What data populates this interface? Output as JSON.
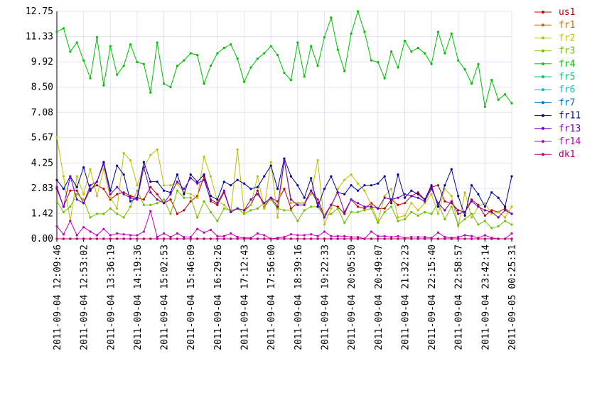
{
  "chart_data": {
    "type": "line",
    "categories": [
      "2011-09-04 12:09:46",
      null,
      null,
      null,
      "2011-09-04 12:53:02",
      null,
      null,
      null,
      "2011-09-04 13:36:19",
      null,
      null,
      null,
      "2011-09-04 14:19:36",
      null,
      null,
      null,
      "2011-09-04 15:02:53",
      null,
      null,
      null,
      "2011-09-04 15:46:09",
      null,
      null,
      null,
      "2011-09-04 16:29:26",
      null,
      null,
      null,
      "2011-09-04 17:12:43",
      null,
      null,
      null,
      "2011-09-04 17:56:00",
      null,
      null,
      null,
      "2011-09-04 18:39:16",
      null,
      null,
      null,
      "2011-09-04 19:22:33",
      null,
      null,
      null,
      "2011-09-04 20:05:50",
      null,
      null,
      null,
      "2011-09-04 20:49:07",
      null,
      null,
      null,
      "2011-09-04 21:32:23",
      null,
      null,
      null,
      "2011-09-04 22:15:40",
      null,
      null,
      null,
      "2011-09-04 22:58:57",
      null,
      null,
      null,
      "2011-09-04 23:42:14",
      null,
      null,
      null,
      "2011-09-05 00:25:31"
    ],
    "ylim": [
      0,
      12.75
    ],
    "yticks": [
      {
        "value": 0,
        "label": "0.00"
      },
      {
        "value": 1.42,
        "label": "1.42"
      },
      {
        "value": 2.83,
        "label": "2.83"
      },
      {
        "value": 4.25,
        "label": "4.25"
      },
      {
        "value": 5.67,
        "label": "5.67"
      },
      {
        "value": 7.08,
        "label": "7.08"
      },
      {
        "value": 8.5,
        "label": "8.50"
      },
      {
        "value": 9.92,
        "label": "9.92"
      },
      {
        "value": 11.33,
        "label": "11.33"
      },
      {
        "value": 12.75,
        "label": "12.75"
      }
    ],
    "grid": true,
    "legend": "right",
    "series": [
      {
        "name": "us1",
        "color": "#c00000",
        "values": [
          2.9,
          1.8,
          2.7,
          2.7,
          2.0,
          2.8,
          3.0,
          2.8,
          2.2,
          2.5,
          2.6,
          2.4,
          2.3,
          2.2,
          2.9,
          2.5,
          2.0,
          2.2,
          1.4,
          1.6,
          2.1,
          2.4,
          3.5,
          2.1,
          1.9,
          2.6,
          1.5,
          1.7,
          1.6,
          1.9,
          2.7,
          1.8,
          2.3,
          2.1,
          2.8,
          1.7,
          2.0,
          2.0,
          2.7,
          2.2,
          1.3,
          1.9,
          1.8,
          1.4,
          2.2,
          1.8,
          1.7,
          2.0,
          1.7,
          1.7,
          2.2,
          1.9,
          2.0,
          2.4,
          2.6,
          2.2,
          2.9,
          3.0,
          2.1,
          2.0,
          1.6,
          1.5,
          2.2,
          1.9,
          1.3,
          1.6,
          1.5,
          1.7,
          1.4
        ]
      },
      {
        "name": "fr1",
        "color": "#c07000",
        "values": [
          0,
          0,
          0,
          0,
          0,
          0,
          0,
          0,
          0,
          0,
          0,
          0,
          0,
          0,
          0,
          0,
          0,
          0,
          0,
          0,
          0,
          0,
          0,
          0,
          0,
          0,
          0,
          0,
          0,
          0,
          0,
          0,
          0,
          0,
          0,
          0,
          0,
          0,
          0,
          0,
          0,
          0,
          0,
          0,
          0,
          0,
          0,
          0,
          0,
          0,
          0,
          0,
          0,
          0,
          0,
          0,
          0,
          0,
          0,
          0,
          0,
          0,
          0,
          0,
          0,
          0,
          0,
          0,
          0
        ]
      },
      {
        "name": "fr2",
        "color": "#c0c000",
        "values": [
          5.7,
          3.5,
          1.0,
          3.5,
          2.5,
          3.9,
          2.4,
          3.9,
          2.3,
          1.7,
          4.8,
          4.4,
          3.0,
          4.0,
          4.7,
          5.0,
          3.0,
          3.0,
          3.1,
          2.6,
          2.5,
          2.3,
          4.6,
          3.5,
          2.1,
          1.9,
          1.5,
          5.0,
          1.5,
          1.9,
          3.5,
          1.7,
          4.3,
          1.2,
          4.4,
          2.0,
          2.0,
          2.0,
          2.5,
          4.4,
          0.8,
          1.7,
          2.8,
          3.3,
          3.6,
          3.1,
          2.7,
          1.9,
          1.0,
          2.4,
          2.8,
          1.2,
          1.3,
          2.0,
          1.6,
          2.0,
          2.5,
          1.4,
          2.8,
          2.4,
          0.7,
          2.6,
          1.2,
          1.8,
          2.0,
          1.4,
          1.5,
          1.2,
          1.8
        ]
      },
      {
        "name": "fr3",
        "color": "#70c000",
        "values": [
          2.1,
          1.5,
          1.8,
          2.5,
          2.2,
          1.2,
          1.4,
          1.4,
          1.7,
          1.4,
          1.2,
          1.8,
          2.7,
          1.9,
          1.9,
          2.0,
          2.2,
          1.4,
          2.7,
          2.3,
          2.3,
          1.2,
          2.1,
          1.5,
          1.0,
          1.7,
          1.6,
          1.7,
          1.4,
          1.6,
          1.7,
          2.0,
          2.2,
          1.7,
          1.6,
          1.6,
          1.0,
          1.6,
          1.8,
          1.8,
          1.3,
          1.4,
          1.7,
          0.9,
          1.5,
          1.5,
          1.6,
          1.7,
          0.9,
          1.5,
          1.8,
          1.0,
          1.1,
          1.5,
          1.3,
          1.5,
          1.4,
          2.0,
          1.1,
          1.8,
          0.8,
          1.1,
          1.4,
          0.8,
          1.0,
          0.6,
          0.7,
          1.0,
          0.8
        ]
      },
      {
        "name": "fr4",
        "color": "#00c000",
        "values": [
          11.6,
          11.8,
          10.5,
          11.0,
          10.0,
          9.0,
          11.3,
          8.6,
          10.8,
          9.2,
          9.7,
          10.9,
          9.9,
          9.8,
          8.2,
          11.0,
          8.7,
          8.5,
          9.7,
          10.0,
          10.4,
          10.3,
          8.7,
          9.7,
          10.4,
          10.7,
          10.9,
          10.1,
          8.8,
          9.6,
          10.1,
          10.4,
          10.8,
          10.3,
          9.3,
          8.9,
          11.0,
          9.1,
          10.8,
          9.7,
          11.3,
          12.4,
          10.6,
          9.4,
          11.5,
          12.75,
          11.6,
          10.0,
          9.9,
          9.0,
          10.5,
          9.6,
          11.1,
          10.5,
          10.7,
          10.4,
          9.8,
          11.6,
          10.4,
          11.5,
          10.0,
          9.5,
          8.7,
          9.8,
          7.4,
          8.9,
          7.8,
          8.1,
          7.6
        ]
      },
      {
        "name": "fr5",
        "color": "#00c070",
        "values": [
          0,
          0,
          0,
          0,
          0,
          0,
          0,
          0,
          0,
          0,
          0,
          0,
          0,
          0,
          0,
          0,
          0,
          0,
          0,
          0,
          0,
          0,
          0,
          0,
          0,
          0,
          0,
          0,
          0,
          0,
          0,
          0,
          0,
          0,
          0,
          0,
          0,
          0,
          0,
          0,
          0,
          0,
          0,
          0,
          0,
          0,
          0,
          0,
          0,
          0,
          0,
          0,
          0,
          0,
          0,
          0,
          0,
          0,
          0,
          0,
          0,
          0,
          0,
          0,
          0,
          0,
          0,
          0,
          0
        ]
      },
      {
        "name": "fr6",
        "color": "#00c0c0",
        "values": [
          0,
          0,
          0,
          0,
          0,
          0,
          0,
          0,
          0,
          0,
          0,
          0,
          0,
          0,
          0,
          0,
          0,
          0,
          0,
          0,
          0,
          0,
          0,
          0,
          0,
          0,
          0,
          0,
          0,
          0,
          0,
          0,
          0,
          0,
          0,
          0,
          0,
          0,
          0,
          0,
          0,
          0,
          0,
          0,
          0,
          0,
          0,
          0,
          0,
          0,
          0,
          0,
          0,
          0,
          0,
          0,
          0,
          0,
          0,
          0,
          0,
          0,
          0,
          0,
          0,
          0,
          0,
          0,
          0
        ]
      },
      {
        "name": "fr7",
        "color": "#0070c0",
        "values": [
          0,
          0,
          0,
          0,
          0,
          0,
          0,
          0,
          0,
          0,
          0,
          0,
          0,
          0,
          0,
          0,
          0,
          0,
          0,
          0,
          0,
          0,
          0,
          0,
          0,
          0,
          0,
          0,
          0,
          0,
          0,
          0,
          0,
          0,
          0,
          0,
          0,
          0,
          0,
          0,
          0,
          0,
          0,
          0,
          0,
          0,
          0,
          0,
          0,
          0,
          0,
          0,
          0,
          0,
          0,
          0,
          0,
          0,
          0,
          0,
          0,
          0,
          0,
          0,
          0,
          0,
          0,
          0,
          0
        ]
      },
      {
        "name": "fr11",
        "color": "#0000a0",
        "values": [
          3.3,
          2.8,
          3.5,
          2.9,
          4.0,
          2.7,
          3.2,
          4.3,
          2.7,
          4.1,
          3.6,
          2.1,
          2.3,
          4.3,
          3.2,
          3.2,
          2.7,
          2.6,
          3.6,
          2.5,
          3.6,
          3.2,
          3.6,
          2.4,
          2.2,
          3.2,
          3.0,
          3.3,
          3.1,
          2.8,
          2.9,
          3.5,
          4.1,
          2.8,
          4.5,
          3.5,
          3.0,
          2.3,
          3.4,
          1.8,
          2.8,
          3.5,
          2.6,
          2.5,
          3.0,
          2.7,
          3.0,
          3.0,
          3.1,
          3.5,
          2.0,
          3.6,
          2.3,
          2.7,
          2.5,
          2.2,
          3.0,
          1.8,
          3.0,
          3.9,
          2.4,
          1.3,
          3.0,
          2.5,
          1.8,
          2.6,
          2.3,
          1.8,
          3.5
        ]
      },
      {
        "name": "fr13",
        "color": "#7000c0",
        "values": [
          2.8,
          1.8,
          3.5,
          2.2,
          2.0,
          3.0,
          3.2,
          4.2,
          2.5,
          2.9,
          2.5,
          2.3,
          2.2,
          4.0,
          2.6,
          2.2,
          2.0,
          2.5,
          3.2,
          2.8,
          3.4,
          3.1,
          3.3,
          2.2,
          2.0,
          2.7,
          1.5,
          1.7,
          1.6,
          2.2,
          2.5,
          2.0,
          2.3,
          1.8,
          4.4,
          2.2,
          1.9,
          1.9,
          2.7,
          2.0,
          1.2,
          1.9,
          2.6,
          1.5,
          2.2,
          2.0,
          1.8,
          1.8,
          1.7,
          2.3,
          2.2,
          2.3,
          2.5,
          2.4,
          2.3,
          2.1,
          2.8,
          2.0,
          1.6,
          2.1,
          1.4,
          1.5,
          2.1,
          1.8,
          1.6,
          1.5,
          1.2,
          1.6,
          1.4
        ]
      },
      {
        "name": "fr14",
        "color": "#c000c0",
        "values": [
          0.7,
          0.25,
          1.0,
          0.2,
          0.65,
          0.4,
          0.2,
          0.55,
          0.2,
          0.3,
          0.25,
          0.2,
          0.2,
          0.4,
          1.55,
          0.1,
          0.3,
          0.1,
          0.3,
          0.1,
          0.1,
          0.55,
          0.35,
          0.5,
          0.15,
          0.15,
          0.3,
          0.1,
          0.05,
          0.05,
          0.3,
          0.2,
          0.0,
          0.05,
          0.1,
          0.25,
          0.2,
          0.2,
          0.25,
          0.15,
          0.4,
          0.15,
          0.15,
          0.15,
          0.1,
          0.1,
          0.0,
          0.4,
          0.15,
          0.15,
          0.1,
          0.15,
          0.05,
          0.1,
          0.1,
          0.1,
          0.05,
          0.35,
          0.1,
          0.05,
          0.1,
          0.2,
          0.15,
          0.05,
          0.2,
          0.05,
          0.0,
          0.0,
          0.3
        ]
      },
      {
        "name": "dk1",
        "color": "#c00070",
        "values": [
          0,
          0,
          0,
          0,
          0,
          0,
          0,
          0,
          0,
          0,
          0,
          0,
          0,
          0,
          0,
          0,
          0,
          0,
          0,
          0,
          0,
          0,
          0,
          0,
          0,
          0,
          0,
          0,
          0,
          0,
          0,
          0,
          0,
          0,
          0,
          0,
          0,
          0,
          0,
          0,
          0,
          0,
          0,
          0,
          0,
          0,
          0,
          0,
          0,
          0,
          0,
          0,
          0,
          0,
          0,
          0,
          0,
          0,
          0,
          0,
          0,
          0,
          0,
          0,
          0,
          0,
          0,
          0,
          0
        ]
      }
    ]
  }
}
